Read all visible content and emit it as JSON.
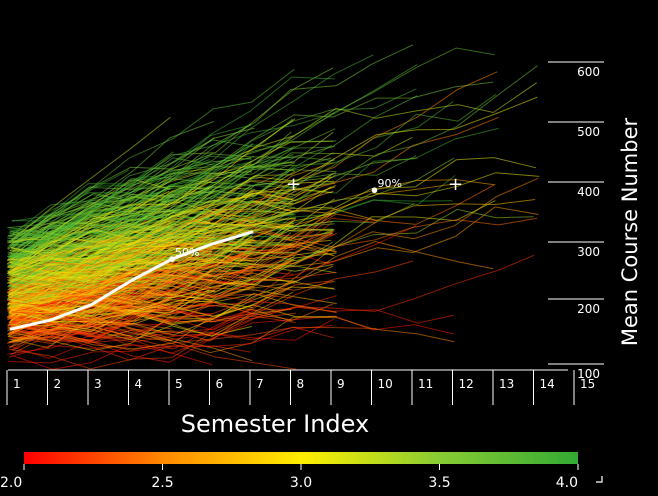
{
  "chart_data": {
    "type": "line",
    "xlabel": "Semester Index",
    "ylabel": "Mean Course Number",
    "x_ticks": [
      "1",
      "2",
      "3",
      "4",
      "5",
      "6",
      "7",
      "8",
      "9",
      "10",
      "11",
      "12",
      "13",
      "14",
      "15"
    ],
    "y_ticks": [
      100,
      200,
      300,
      400,
      500,
      600
    ],
    "xlim": [
      1,
      15
    ],
    "ylim": [
      100,
      600
    ],
    "percentile_curves": [
      {
        "label": "50%",
        "x": [
          1,
          2,
          3,
          4,
          5,
          6,
          7
        ],
        "y": [
          170,
          185,
          210,
          250,
          285,
          310,
          330
        ],
        "label_at": [
          5,
          285
        ]
      },
      {
        "label": "90%",
        "x": [
          8,
          10,
          12
        ],
        "y": [
          405,
          400,
          405
        ],
        "label_at": [
          10,
          398
        ]
      }
    ],
    "markers": [
      {
        "symbol": "+",
        "x": 8,
        "y": 408
      },
      {
        "symbol": "+",
        "x": 12,
        "y": 408
      }
    ],
    "colorbar": {
      "ticks": [
        "2.0",
        "2.5",
        "3.0",
        "3.5",
        "4.0"
      ],
      "range": [
        2.0,
        4.0
      ],
      "colors": [
        "#ff0000",
        "#ff8800",
        "#ffee00",
        "#88cc33",
        "#33aa33"
      ]
    }
  }
}
